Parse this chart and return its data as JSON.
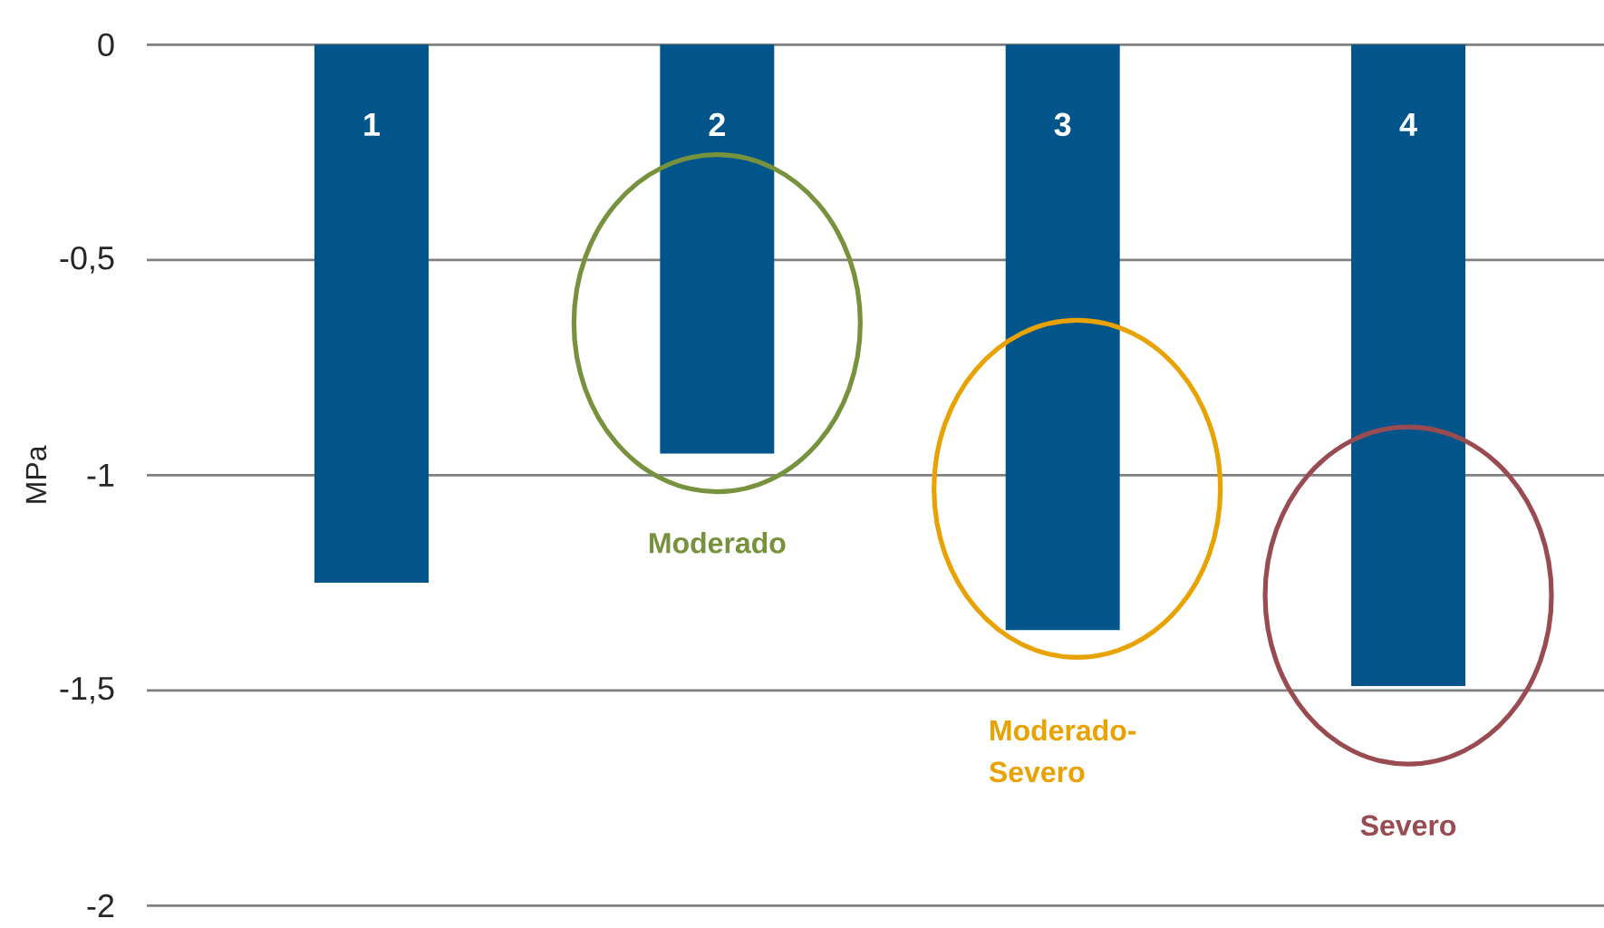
{
  "chart_data": {
    "type": "bar",
    "categories": [
      "1",
      "2",
      "3",
      "4"
    ],
    "values": [
      -1.25,
      -0.95,
      -1.36,
      -1.49
    ],
    "color": "#01558b",
    "ylabel": "MPa",
    "ylim": [
      -2,
      0
    ],
    "yticks": [
      -2,
      {
        "value": -1.5,
        "label": "-1,5"
      },
      -1,
      {
        "value": -0.5,
        "label": "-0,5"
      },
      0
    ],
    "grid": "y",
    "annotations": [
      "Moderado",
      "Moderado-Severo",
      "Severo"
    ]
  }
}
